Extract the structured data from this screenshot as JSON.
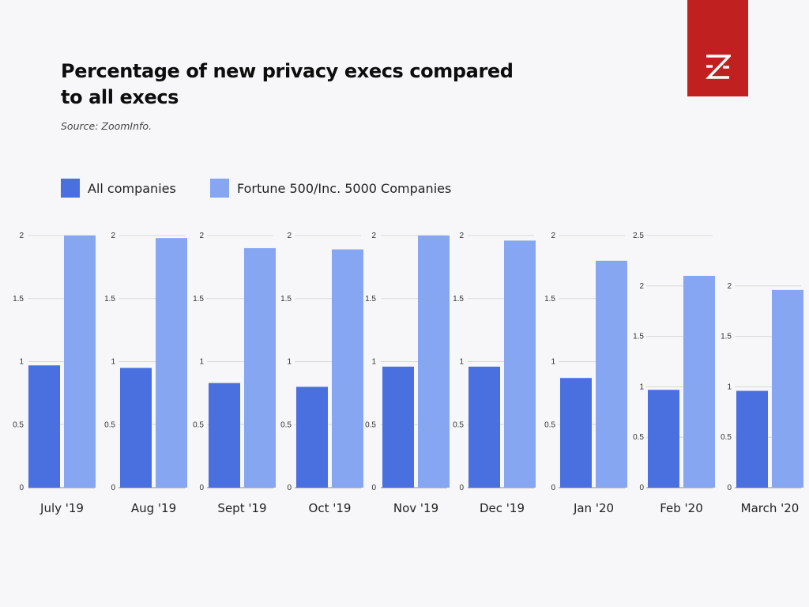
{
  "header": {
    "title": "Percentage of new privacy execs compared to all execs",
    "source": "Source: ZoomInfo."
  },
  "logo": {
    "icon": "zoominfo-z-icon",
    "color": "#c0201f"
  },
  "colors": {
    "all_companies": "#4a70e0",
    "fortune": "#86a6f1",
    "grid": "#d8d8d8",
    "axis": "#888888"
  },
  "legend": [
    {
      "label": "All companies",
      "color": "#4a70e0"
    },
    {
      "label": "Fortune 500/Inc. 5000 Companies",
      "color": "#86a6f1"
    }
  ],
  "chart_data": [
    {
      "type": "bar",
      "categories": [
        "July '19"
      ],
      "series": [
        {
          "name": "All companies",
          "values": [
            0.97
          ]
        },
        {
          "name": "Fortune 500/Inc. 5000 Companies",
          "values": [
            2.0
          ]
        }
      ],
      "ylim": [
        0,
        2
      ],
      "yticks": [
        "0",
        "0.5",
        "1",
        "1.5",
        "2"
      ],
      "grid": true
    },
    {
      "type": "bar",
      "categories": [
        "Aug '19"
      ],
      "series": [
        {
          "name": "All companies",
          "values": [
            0.95
          ]
        },
        {
          "name": "Fortune 500/Inc. 5000 Companies",
          "values": [
            1.98
          ]
        }
      ],
      "ylim": [
        0,
        2
      ],
      "yticks": [
        "0",
        "0.5",
        "1",
        "1.5",
        "2"
      ],
      "grid": true
    },
    {
      "type": "bar",
      "categories": [
        "Sept '19"
      ],
      "series": [
        {
          "name": "All companies",
          "values": [
            0.83
          ]
        },
        {
          "name": "Fortune 500/Inc. 5000 Companies",
          "values": [
            1.9
          ]
        }
      ],
      "ylim": [
        0,
        2
      ],
      "yticks": [
        "0",
        "0.5",
        "1",
        "1.5",
        "2"
      ],
      "grid": true
    },
    {
      "type": "bar",
      "categories": [
        "Oct '19"
      ],
      "series": [
        {
          "name": "All companies",
          "values": [
            0.8
          ]
        },
        {
          "name": "Fortune 500/Inc. 5000 Companies",
          "values": [
            1.89
          ]
        }
      ],
      "ylim": [
        0,
        2
      ],
      "yticks": [
        "0",
        "0.5",
        "1",
        "1.5",
        "2"
      ],
      "grid": true
    },
    {
      "type": "bar",
      "categories": [
        "Nov '19"
      ],
      "series": [
        {
          "name": "All companies",
          "values": [
            0.96
          ]
        },
        {
          "name": "Fortune 500/Inc. 5000 Companies",
          "values": [
            2.0
          ]
        }
      ],
      "ylim": [
        0,
        2
      ],
      "yticks": [
        "0",
        "0.5",
        "1",
        "1.5",
        "2"
      ],
      "grid": true
    },
    {
      "type": "bar",
      "categories": [
        "Dec '19"
      ],
      "series": [
        {
          "name": "All companies",
          "values": [
            0.96
          ]
        },
        {
          "name": "Fortune 500/Inc. 5000 Companies",
          "values": [
            1.96
          ]
        }
      ],
      "ylim": [
        0,
        2
      ],
      "yticks": [
        "0",
        "0.5",
        "1",
        "1.5",
        "2"
      ],
      "grid": true
    },
    {
      "type": "bar",
      "categories": [
        "Jan '20"
      ],
      "series": [
        {
          "name": "All companies",
          "values": [
            0.87
          ]
        },
        {
          "name": "Fortune 500/Inc. 5000 Companies",
          "values": [
            1.8
          ]
        }
      ],
      "ylim": [
        0,
        2
      ],
      "yticks": [
        "0",
        "0.5",
        "1",
        "1.5",
        "2"
      ],
      "grid": true
    },
    {
      "type": "bar",
      "categories": [
        "Feb '20"
      ],
      "series": [
        {
          "name": "All companies",
          "values": [
            0.97
          ]
        },
        {
          "name": "Fortune 500/Inc. 5000 Companies",
          "values": [
            2.1
          ]
        }
      ],
      "ylim": [
        0,
        2.5
      ],
      "yticks": [
        "0",
        "0.5",
        "1",
        "1.5",
        "2",
        "2.5"
      ],
      "grid": true
    },
    {
      "type": "bar",
      "categories": [
        "March '20"
      ],
      "series": [
        {
          "name": "All companies",
          "values": [
            0.96
          ]
        },
        {
          "name": "Fortune 500/Inc. 5000 Companies",
          "values": [
            1.96
          ]
        }
      ],
      "ylim": [
        0,
        2.5
      ],
      "yticks": [
        "0",
        "0.5",
        "1",
        "1.5",
        "2"
      ],
      "grid": true
    }
  ]
}
